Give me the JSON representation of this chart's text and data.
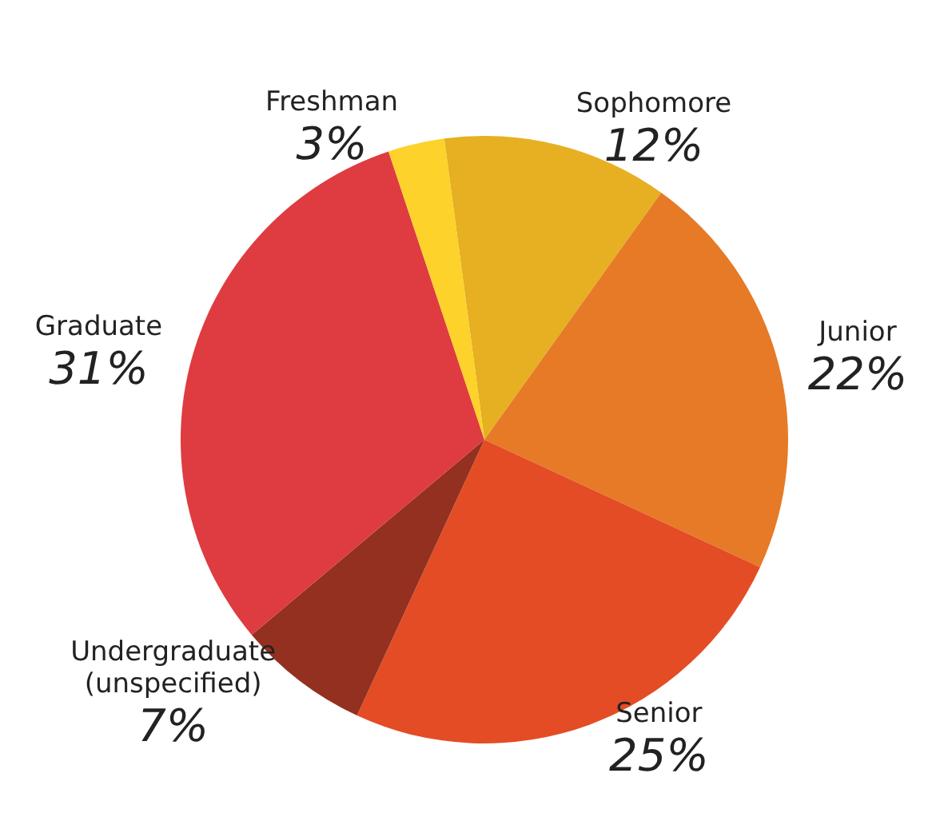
{
  "chart_data": {
    "type": "pie",
    "categories": [
      "Sophomore",
      "Junior",
      "Senior",
      "Undergraduate\n(unspecified)",
      "Graduate",
      "Freshman"
    ],
    "values": [
      12,
      22,
      25,
      7,
      31,
      3
    ],
    "value_labels": [
      "12%",
      "22%",
      "25%",
      "7%",
      "31%",
      "3%"
    ],
    "colors": [
      "#e6b022",
      "#e67a27",
      "#e44c25",
      "#93301f",
      "#de3c40",
      "#fdd22a"
    ],
    "legend": false
  }
}
